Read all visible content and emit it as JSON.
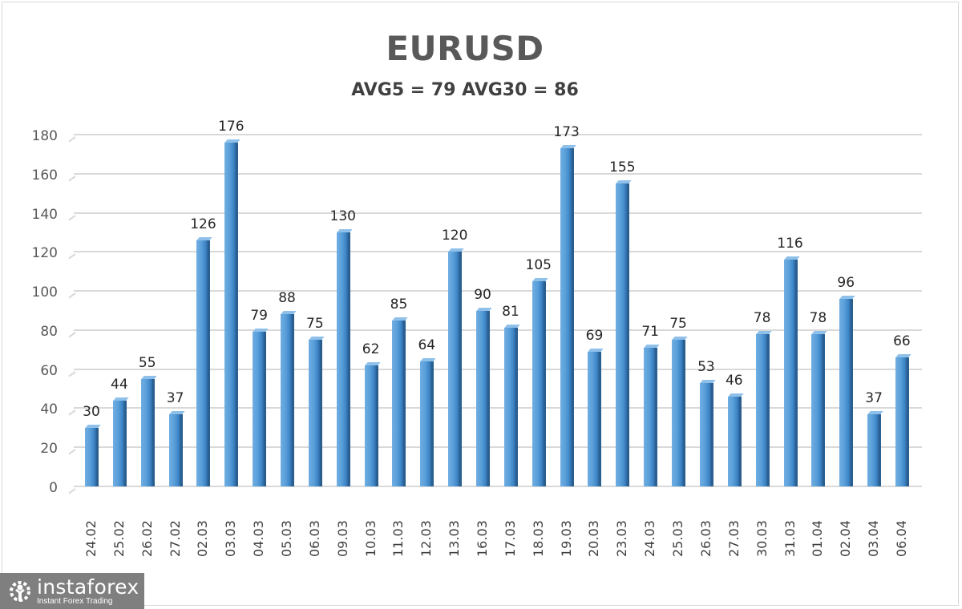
{
  "header": {
    "title": "EURUSD",
    "subtitle": "AVG5 = 79 AVG30 = 86"
  },
  "colors": {
    "bar": "#5b9bd5",
    "bar_dark": "#2a5f90",
    "grid": "#d9d9d9",
    "title": "#595959",
    "logo_bg": "#7f7f7f"
  },
  "logo": {
    "icon": "gear-person-icon",
    "name": "instaforex",
    "tagline": "Instant Forex Trading"
  },
  "chart_data": {
    "type": "bar",
    "title": "EURUSD",
    "subtitle": "AVG5 = 79 AVG30 = 86",
    "xlabel": "",
    "ylabel": "",
    "ylim": [
      0,
      180
    ],
    "yticks": [
      0,
      20,
      40,
      60,
      80,
      100,
      120,
      140,
      160,
      180
    ],
    "grid": true,
    "legend": null,
    "data_labels": true,
    "categories": [
      "24.02",
      "25.02",
      "26.02",
      "27.02",
      "02.03",
      "03.03",
      "04.03",
      "05.03",
      "06.03",
      "09.03",
      "10.03",
      "11.03",
      "12.03",
      "13.03",
      "16.03",
      "17.03",
      "18.03",
      "19.03",
      "20.03",
      "23.03",
      "24.03",
      "25.03",
      "26.03",
      "27.03",
      "30.03",
      "31.03",
      "01.04",
      "02.04",
      "03.04",
      "06.04"
    ],
    "values": [
      30,
      44,
      55,
      37,
      126,
      176,
      79,
      88,
      75,
      130,
      62,
      85,
      64,
      120,
      90,
      81,
      105,
      173,
      69,
      155,
      71,
      75,
      53,
      46,
      78,
      116,
      78,
      96,
      37,
      66
    ]
  }
}
